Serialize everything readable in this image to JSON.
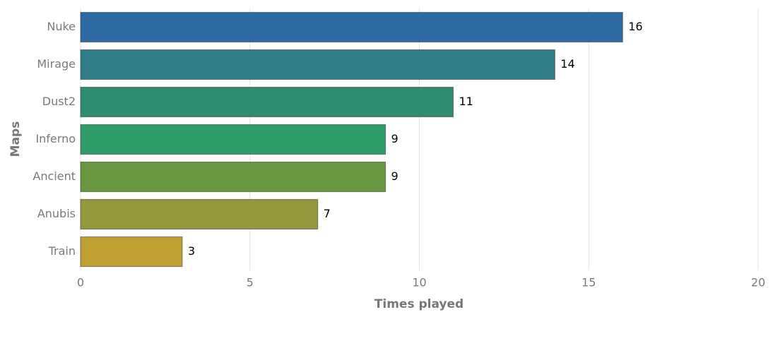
{
  "chart_data": {
    "type": "bar",
    "orientation": "horizontal",
    "x_label": "Times played",
    "y_label": "Maps",
    "categories": [
      "Nuke",
      "Mirage",
      "Dust2",
      "Inferno",
      "Ancient",
      "Anubis",
      "Train"
    ],
    "values": [
      16,
      14,
      11,
      9,
      9,
      7,
      3
    ],
    "colors": [
      "#2e6ba5",
      "#2e7d86",
      "#2e8c70",
      "#2e9d68",
      "#699740",
      "#949a3b",
      "#c1a033"
    ],
    "xlim": [
      0,
      20
    ],
    "xticks": [
      0,
      5,
      10,
      15,
      20
    ],
    "grid": true
  }
}
